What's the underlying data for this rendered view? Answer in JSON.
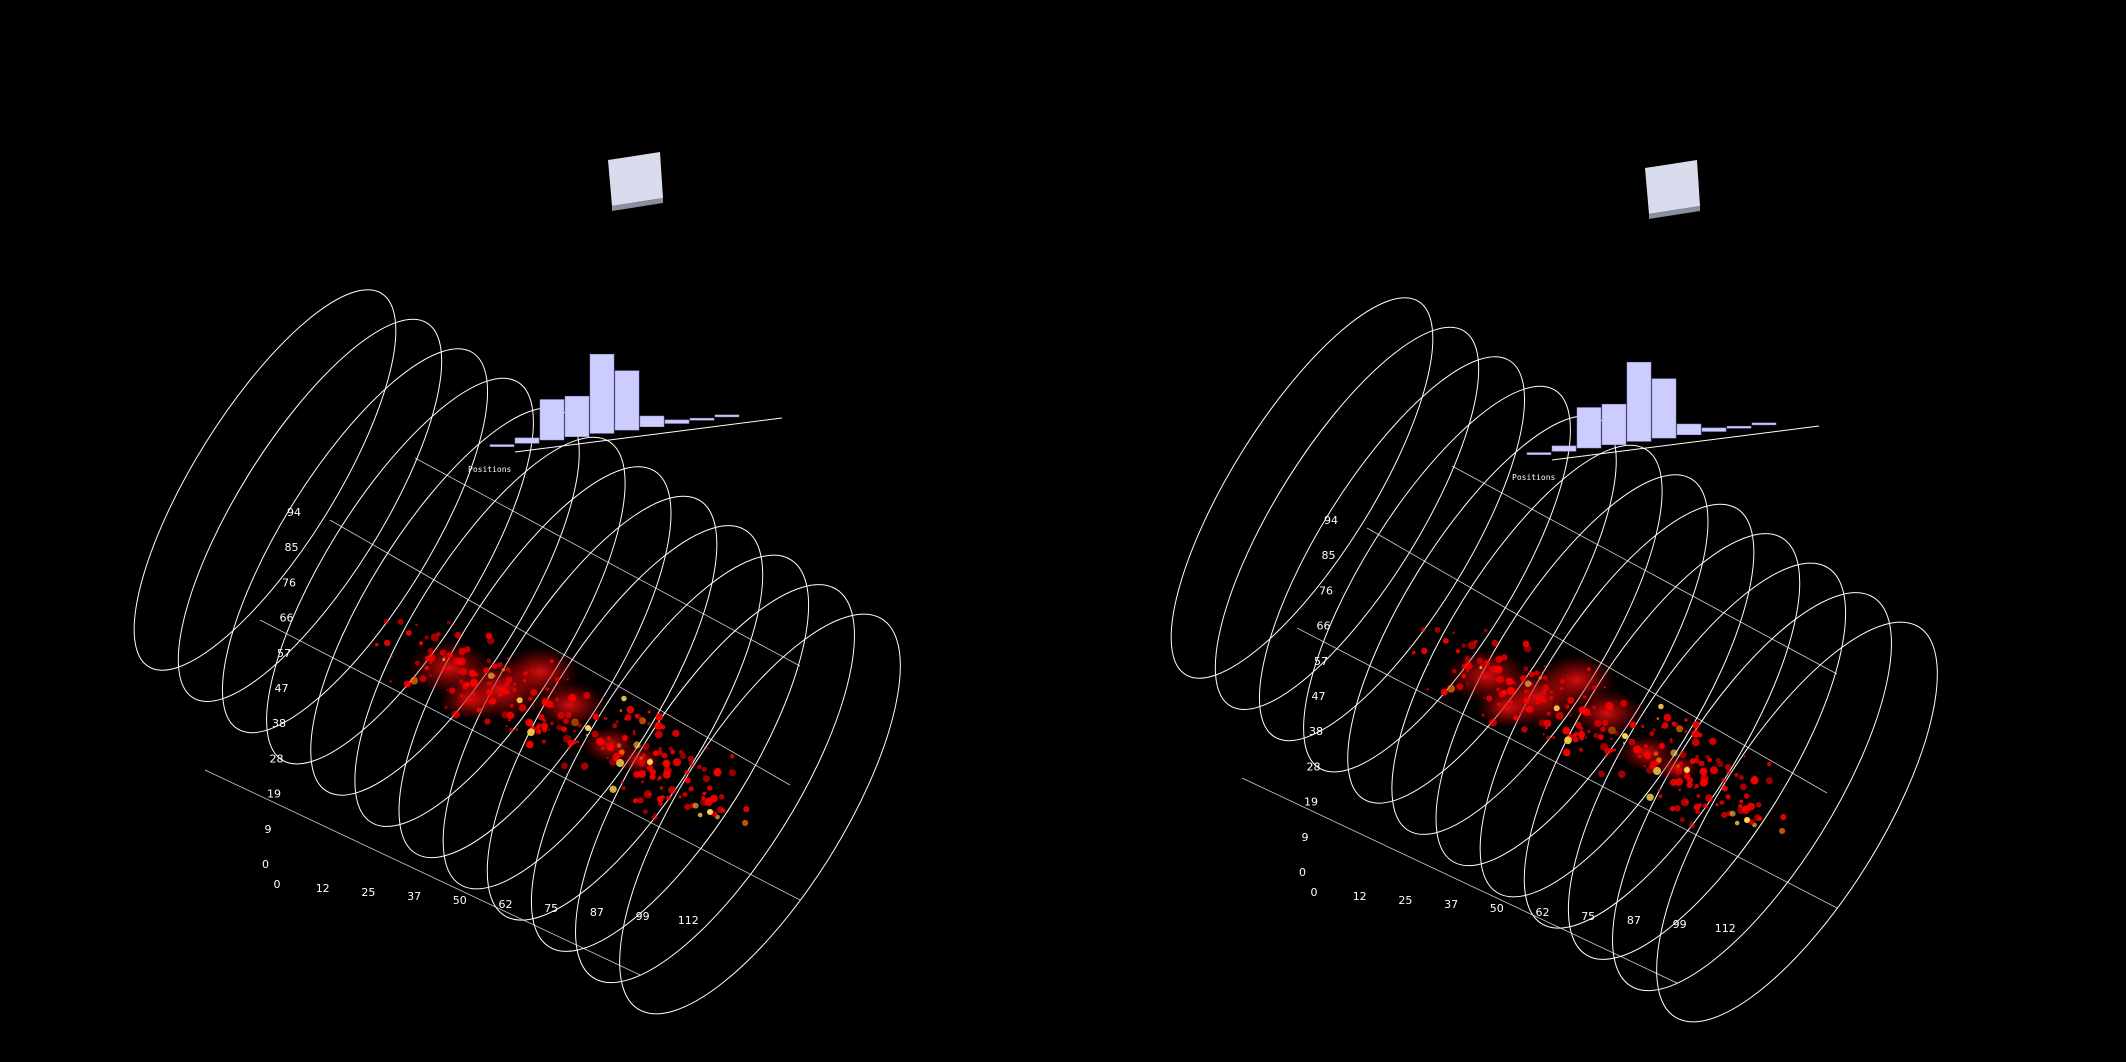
{
  "chart_data": [
    {
      "type": "3d-stereo-view",
      "view": "left",
      "axis_title": "Positions",
      "x_ticks": [
        "0",
        "12",
        "25",
        "37",
        "50",
        "62",
        "75",
        "87",
        "99",
        "112"
      ],
      "y_ticks": [
        "0",
        "9",
        "19",
        "28",
        "38",
        "47",
        "57",
        "66",
        "76",
        "85",
        "94"
      ],
      "histogram": {
        "type": "bar",
        "values": [
          0.02,
          0.06,
          0.45,
          0.45,
          0.88,
          0.66,
          0.12,
          0.04,
          0.02,
          0.01
        ]
      },
      "cloud": {
        "type": "heatmap",
        "colors": [
          "#ff0000",
          "#ff6a00",
          "#ffd24a"
        ]
      },
      "colors": {
        "bars": "#ccccff",
        "wire": "#ffffff",
        "cube": "#d8dcec"
      }
    },
    {
      "type": "3d-stereo-view",
      "view": "right",
      "axis_title": "Positions",
      "x_ticks": [
        "0",
        "12",
        "25",
        "37",
        "50",
        "62",
        "75",
        "87",
        "99",
        "112"
      ],
      "y_ticks": [
        "0",
        "9",
        "19",
        "28",
        "38",
        "47",
        "57",
        "66",
        "76",
        "85",
        "94"
      ],
      "histogram": {
        "type": "bar",
        "values": [
          0.02,
          0.06,
          0.45,
          0.45,
          0.88,
          0.66,
          0.12,
          0.04,
          0.02,
          0.01
        ]
      },
      "cloud": {
        "type": "heatmap",
        "colors": [
          "#ff0000",
          "#ff6a00",
          "#ffd24a"
        ]
      },
      "colors": {
        "bars": "#ccccff",
        "wire": "#ffffff",
        "cube": "#d8dcec"
      }
    }
  ]
}
